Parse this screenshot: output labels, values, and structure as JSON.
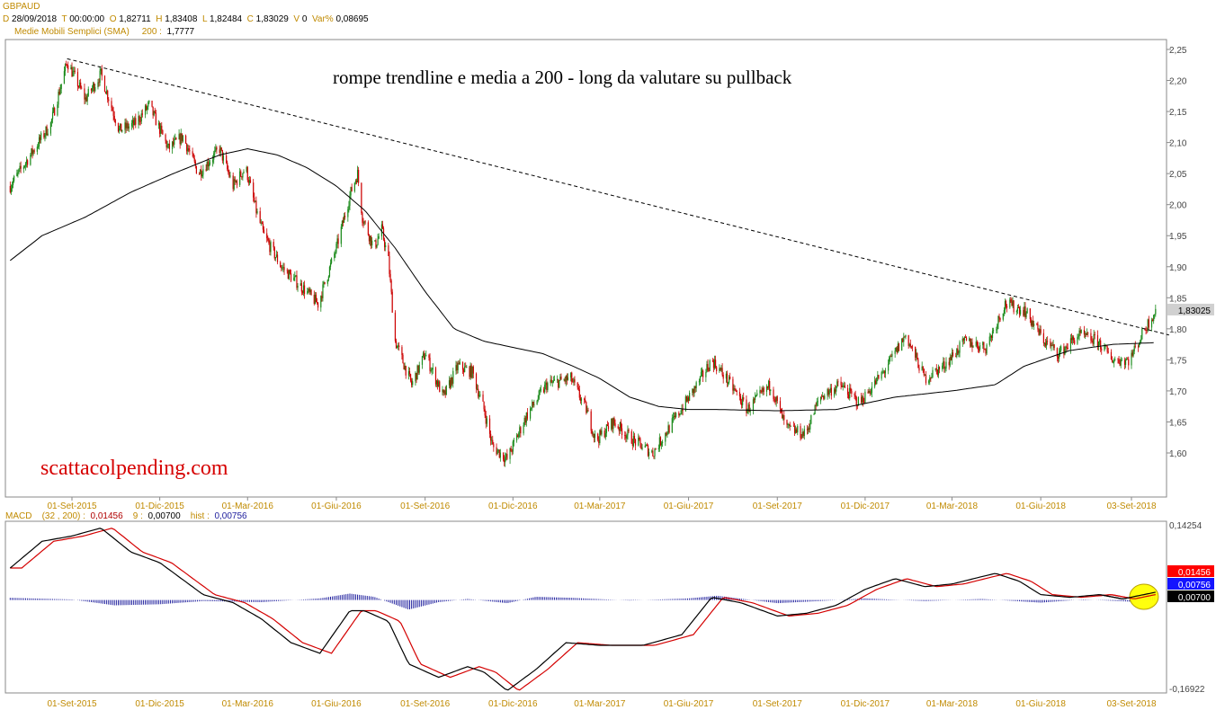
{
  "header": {
    "symbol": "GBPAUD",
    "date_key": "D",
    "date_val": "28/09/2018",
    "time_key": "T",
    "time_val": "00:00:00",
    "open_key": "O",
    "open_val": "1,82711",
    "high_key": "H",
    "high_val": "1,83408",
    "low_key": "L",
    "low_val": "1,82484",
    "close_key": "C",
    "close_val": "1,83029",
    "vol_key": "V",
    "vol_val": "0",
    "var_key": "Var%",
    "var_val": "0,08695",
    "sma_label": "Medie Mobili Semplici (SMA)",
    "sma_period": "200",
    "sma_value": "1,7777"
  },
  "annotation": "rompe trendline  e media a 200 - long da valutare su pullback",
  "watermark": "scattacolpending.com",
  "macd_header": {
    "label": "MACD",
    "params": "(32 , 200)",
    "macd_val": "0,01456",
    "signal_period": "9",
    "signal_val": "0,00700",
    "hist_label": "hist",
    "hist_val": "0,00756"
  },
  "colors": {
    "up": "#1a8a1a",
    "down": "#cc0000",
    "sma": "#000000",
    "trendline": "#000000",
    "macd_line": "#000000",
    "signal_line": "#d40000",
    "histogram": "#1c1c9c",
    "highlight": "#ffff00",
    "axis_date": "#c08a00"
  },
  "chart_data": [
    {
      "type": "candlestick",
      "title": "GBPAUD",
      "x_ticks": [
        "01-Set-2015",
        "01-Dic-2015",
        "01-Mar-2016",
        "01-Giu-2016",
        "01-Set-2016",
        "01-Dic-2016",
        "01-Mar-2017",
        "01-Giu-2017",
        "01-Set-2017",
        "01-Dic-2017",
        "01-Mar-2018",
        "01-Giu-2018",
        "03-Set-2018"
      ],
      "y_ticks": [
        "2,25",
        "2,20",
        "2,15",
        "2,10",
        "2,05",
        "2,00",
        "1,95",
        "1,90",
        "1,85",
        "1,80",
        "1,75",
        "1,70",
        "1,65",
        "1,60"
      ],
      "ylim": [
        1.53,
        2.26
      ],
      "last_price_label": "1,83025",
      "last_price": 1.83025,
      "price_path": [
        [
          "2015-06-29",
          2.03
        ],
        [
          "2015-07-20",
          2.08
        ],
        [
          "2015-08-10",
          2.13
        ],
        [
          "2015-08-27",
          2.23
        ],
        [
          "2015-09-15",
          2.17
        ],
        [
          "2015-10-01",
          2.21
        ],
        [
          "2015-10-20",
          2.12
        ],
        [
          "2015-11-05",
          2.13
        ],
        [
          "2015-11-20",
          2.16
        ],
        [
          "2015-12-10",
          2.09
        ],
        [
          "2015-12-25",
          2.11
        ],
        [
          "2016-01-10",
          2.05
        ],
        [
          "2016-02-01",
          2.09
        ],
        [
          "2016-02-15",
          2.03
        ],
        [
          "2016-02-28",
          2.06
        ],
        [
          "2016-03-10",
          1.99
        ],
        [
          "2016-03-18",
          1.95
        ],
        [
          "2016-04-05",
          1.9
        ],
        [
          "2016-05-01",
          1.86
        ],
        [
          "2016-05-13",
          1.84
        ],
        [
          "2016-06-01",
          1.93
        ],
        [
          "2016-06-16",
          2.02
        ],
        [
          "2016-06-23",
          2.05
        ],
        [
          "2016-06-28",
          1.98
        ],
        [
          "2016-07-10",
          1.93
        ],
        [
          "2016-07-18",
          1.96
        ],
        [
          "2016-07-25",
          1.91
        ],
        [
          "2016-08-01",
          1.78
        ],
        [
          "2016-08-18",
          1.71
        ],
        [
          "2016-09-01",
          1.76
        ],
        [
          "2016-09-20",
          1.69
        ],
        [
          "2016-10-05",
          1.74
        ],
        [
          "2016-10-20",
          1.73
        ],
        [
          "2016-11-01",
          1.67
        ],
        [
          "2016-11-10",
          1.61
        ],
        [
          "2016-11-25",
          1.59
        ],
        [
          "2016-12-15",
          1.66
        ],
        [
          "2017-01-05",
          1.71
        ],
        [
          "2017-01-30",
          1.72
        ],
        [
          "2017-02-15",
          1.67
        ],
        [
          "2017-02-25",
          1.62
        ],
        [
          "2017-03-15",
          1.65
        ],
        [
          "2017-04-05",
          1.62
        ],
        [
          "2017-04-25",
          1.6
        ],
        [
          "2017-05-20",
          1.66
        ],
        [
          "2017-06-10",
          1.71
        ],
        [
          "2017-06-25",
          1.75
        ],
        [
          "2017-07-10",
          1.72
        ],
        [
          "2017-08-01",
          1.67
        ],
        [
          "2017-08-25",
          1.71
        ],
        [
          "2017-09-10",
          1.64
        ],
        [
          "2017-09-30",
          1.63
        ],
        [
          "2017-10-15",
          1.69
        ],
        [
          "2017-11-05",
          1.71
        ],
        [
          "2017-11-25",
          1.68
        ],
        [
          "2017-12-20",
          1.73
        ],
        [
          "2018-01-12",
          1.79
        ],
        [
          "2018-02-01",
          1.72
        ],
        [
          "2018-02-20",
          1.74
        ],
        [
          "2018-03-15",
          1.78
        ],
        [
          "2018-04-05",
          1.77
        ],
        [
          "2018-04-25",
          1.84
        ],
        [
          "2018-05-15",
          1.83
        ],
        [
          "2018-06-05",
          1.78
        ],
        [
          "2018-06-20",
          1.76
        ],
        [
          "2018-07-10",
          1.79
        ],
        [
          "2018-07-30",
          1.78
        ],
        [
          "2018-08-15",
          1.75
        ],
        [
          "2018-09-01",
          1.75
        ],
        [
          "2018-09-17",
          1.8
        ],
        [
          "2018-09-28",
          1.83
        ]
      ],
      "sma_path": [
        [
          "2015-06-29",
          1.91
        ],
        [
          "2015-08-01",
          1.95
        ],
        [
          "2015-09-15",
          1.98
        ],
        [
          "2015-11-01",
          2.02
        ],
        [
          "2015-12-15",
          2.05
        ],
        [
          "2016-02-01",
          2.08
        ],
        [
          "2016-03-01",
          2.09
        ],
        [
          "2016-04-01",
          2.08
        ],
        [
          "2016-05-01",
          2.06
        ],
        [
          "2016-06-01",
          2.03
        ],
        [
          "2016-07-01",
          1.99
        ],
        [
          "2016-08-01",
          1.93
        ],
        [
          "2016-09-01",
          1.86
        ],
        [
          "2016-10-01",
          1.8
        ],
        [
          "2016-11-01",
          1.78
        ],
        [
          "2016-12-01",
          1.77
        ],
        [
          "2017-01-01",
          1.76
        ],
        [
          "2017-02-01",
          1.74
        ],
        [
          "2017-03-01",
          1.72
        ],
        [
          "2017-04-01",
          1.69
        ],
        [
          "2017-05-01",
          1.675
        ],
        [
          "2017-06-01",
          1.67
        ],
        [
          "2017-07-01",
          1.67
        ],
        [
          "2017-09-01",
          1.668
        ],
        [
          "2017-11-01",
          1.67
        ],
        [
          "2018-01-01",
          1.69
        ],
        [
          "2018-03-01",
          1.7
        ],
        [
          "2018-04-15",
          1.71
        ],
        [
          "2018-05-15",
          1.74
        ],
        [
          "2018-07-01",
          1.765
        ],
        [
          "2018-08-15",
          1.775
        ],
        [
          "2018-09-28",
          1.7777
        ]
      ],
      "trendline": [
        [
          "2015-08-27",
          2.235
        ],
        [
          "2018-10-12",
          1.79
        ]
      ]
    },
    {
      "type": "line",
      "title": "MACD",
      "ylim": [
        -0.16922,
        0.14254
      ],
      "y_ticks": [
        "0,14254",
        "-0,16922"
      ],
      "value_labels": [
        "0,01456",
        "0,00756",
        "0,00700"
      ],
      "macd_path": [
        [
          "2015-06-29",
          0.06
        ],
        [
          "2015-08-01",
          0.11
        ],
        [
          "2015-09-01",
          0.12
        ],
        [
          "2015-10-01",
          0.135
        ],
        [
          "2015-11-01",
          0.09
        ],
        [
          "2015-12-01",
          0.07
        ],
        [
          "2016-01-15",
          0.01
        ],
        [
          "2016-02-15",
          -0.005
        ],
        [
          "2016-03-15",
          -0.035
        ],
        [
          "2016-04-15",
          -0.08
        ],
        [
          "2016-05-15",
          -0.1
        ],
        [
          "2016-06-15",
          -0.02
        ],
        [
          "2016-06-30",
          -0.02
        ],
        [
          "2016-07-25",
          -0.04
        ],
        [
          "2016-08-15",
          -0.12
        ],
        [
          "2016-09-15",
          -0.145
        ],
        [
          "2016-10-15",
          -0.125
        ],
        [
          "2016-11-01",
          -0.135
        ],
        [
          "2016-11-25",
          -0.17
        ],
        [
          "2016-12-25",
          -0.13
        ],
        [
          "2017-01-25",
          -0.08
        ],
        [
          "2017-03-01",
          -0.085
        ],
        [
          "2017-04-15",
          -0.085
        ],
        [
          "2017-05-25",
          -0.065
        ],
        [
          "2017-06-25",
          0.005
        ],
        [
          "2017-07-25",
          -0.005
        ],
        [
          "2017-09-01",
          -0.03
        ],
        [
          "2017-10-01",
          -0.025
        ],
        [
          "2017-11-01",
          -0.01
        ],
        [
          "2017-12-01",
          0.02
        ],
        [
          "2018-01-01",
          0.04
        ],
        [
          "2018-02-01",
          0.025
        ],
        [
          "2018-03-01",
          0.03
        ],
        [
          "2018-04-15",
          0.05
        ],
        [
          "2018-05-10",
          0.035
        ],
        [
          "2018-06-01",
          0.01
        ],
        [
          "2018-07-01",
          0.005
        ],
        [
          "2018-08-01",
          0.01
        ],
        [
          "2018-08-25",
          0.002
        ],
        [
          "2018-09-28",
          0.01456
        ]
      ],
      "histogram_path": [
        [
          "2015-06-29",
          0.004
        ],
        [
          "2015-09-01",
          0.001
        ],
        [
          "2015-10-15",
          -0.01
        ],
        [
          "2015-12-01",
          -0.008
        ],
        [
          "2016-01-15",
          -0.002
        ],
        [
          "2016-03-15",
          -0.004
        ],
        [
          "2016-05-15",
          0.003
        ],
        [
          "2016-06-15",
          0.012
        ],
        [
          "2016-07-10",
          0.006
        ],
        [
          "2016-08-15",
          -0.018
        ],
        [
          "2016-09-15",
          -0.004
        ],
        [
          "2016-10-15",
          0.002
        ],
        [
          "2016-11-25",
          -0.006
        ],
        [
          "2016-12-25",
          0.006
        ],
        [
          "2017-02-01",
          0.004
        ],
        [
          "2017-04-01",
          -0.001
        ],
        [
          "2017-06-01",
          0.003
        ],
        [
          "2017-07-01",
          0.008
        ],
        [
          "2017-09-01",
          -0.006
        ],
        [
          "2017-10-15",
          -0.002
        ],
        [
          "2017-12-01",
          0.003
        ],
        [
          "2018-02-01",
          -0.002
        ],
        [
          "2018-04-01",
          0.002
        ],
        [
          "2018-06-01",
          -0.005
        ],
        [
          "2018-07-15",
          0.001
        ],
        [
          "2018-09-01",
          -0.003
        ],
        [
          "2018-09-28",
          0.00756
        ]
      ]
    }
  ]
}
